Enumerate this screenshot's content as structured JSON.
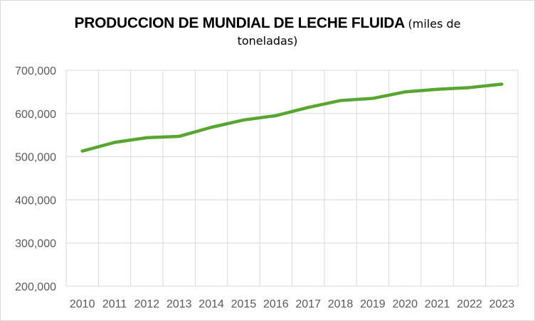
{
  "chart_data": {
    "type": "line",
    "title_bold": "PRODUCCION DE MUNDIAL DE LECHE FLUIDA",
    "title_unit_part1": "(miles de",
    "title_unit_part2": "toneladas)",
    "categories": [
      "2010",
      "2011",
      "2012",
      "2013",
      "2014",
      "2015",
      "2016",
      "2017",
      "2018",
      "2019",
      "2020",
      "2021",
      "2022",
      "2023"
    ],
    "series": [
      {
        "values": [
          513000,
          533000,
          544000,
          547000,
          568000,
          585000,
          595000,
          614000,
          630000,
          635000,
          650000,
          656000,
          660000,
          668000
        ]
      }
    ],
    "ylim": [
      200000,
      700000
    ],
    "yticks": [
      200000,
      300000,
      400000,
      500000,
      600000,
      700000
    ],
    "ytick_labels": [
      "200,000",
      "300,000",
      "400,000",
      "500,000",
      "600,000",
      "700,000"
    ],
    "grid": true,
    "legend": "none",
    "line_color": "#57a632",
    "grid_color": "#d9d9d9"
  }
}
